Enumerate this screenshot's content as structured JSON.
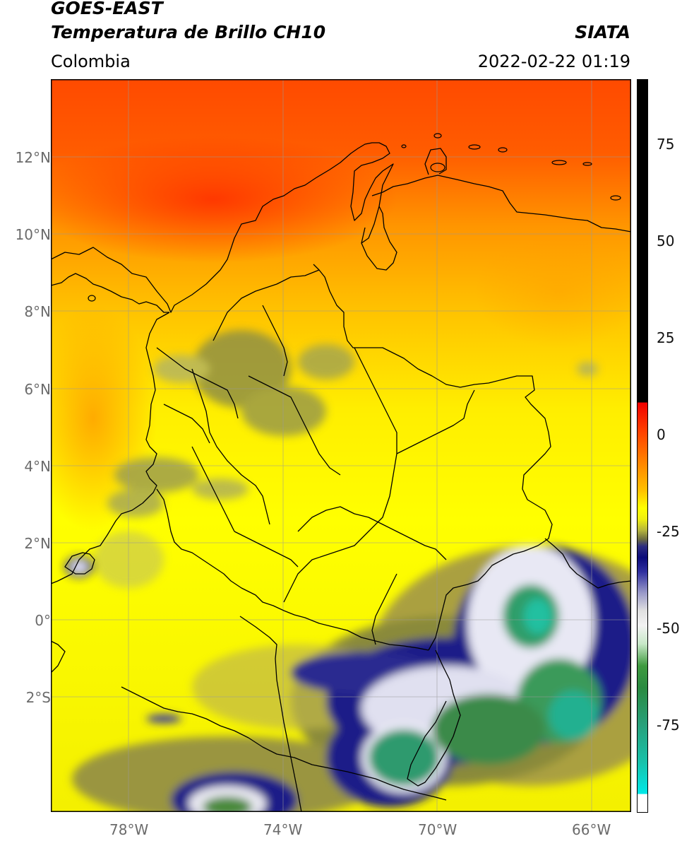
{
  "header": {
    "satellite": "GOES-EAST",
    "product": "Temperatura de Brillo CH10",
    "region": "Colombia",
    "source": "SIATA",
    "datetime": "2022-02-22 01:19"
  },
  "map": {
    "lon_range": [
      -80,
      -65
    ],
    "lat_range": [
      -5,
      14
    ],
    "lat_ticks": [
      "12°N",
      "10°N",
      "8°N",
      "6°N",
      "4°N",
      "2°N",
      "0°",
      "2°S"
    ],
    "lon_ticks": [
      "78°W",
      "74°W",
      "70°W",
      "66°W"
    ],
    "grid": true
  },
  "colorbar": {
    "ticks": [
      "75",
      "50",
      "25",
      "0",
      "-25",
      "-50",
      "-75"
    ],
    "colors": {
      "warm_max": "#000000",
      "red": "#f00000",
      "orange": "#ff8000",
      "yellow": "#ffff00",
      "olive": "#8a8a3a",
      "navy": "#0b0b7a",
      "white": "#ffffff",
      "green": "#2e8b3e",
      "teal": "#20c0a0",
      "cyan": "#00e8e8"
    }
  }
}
